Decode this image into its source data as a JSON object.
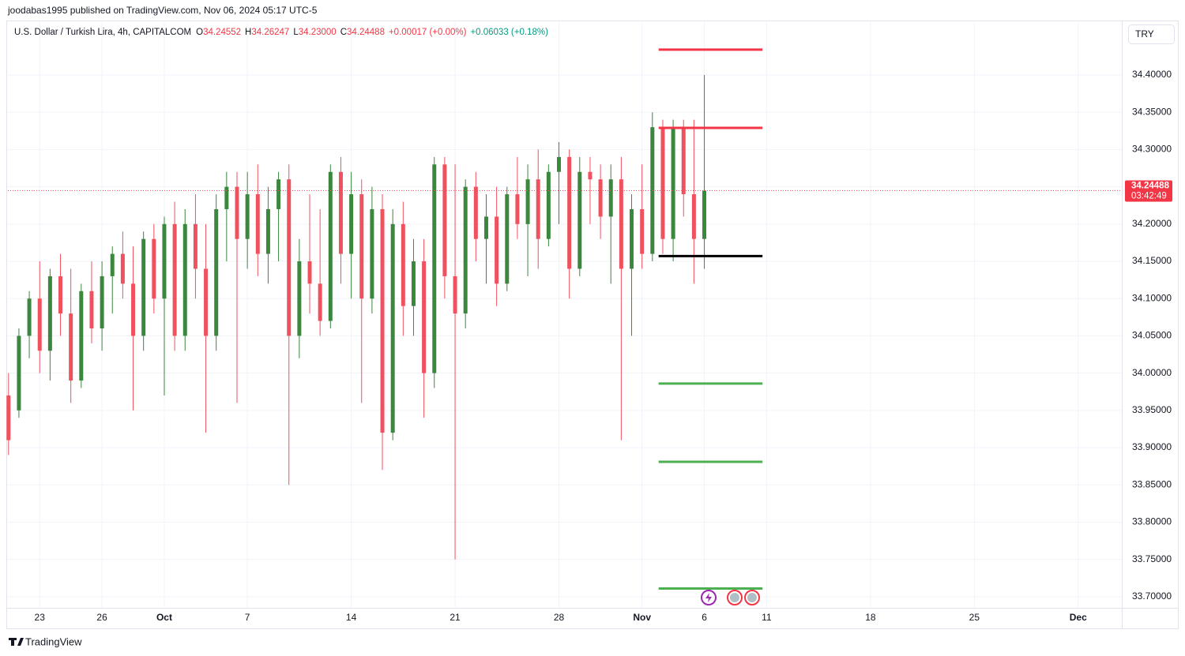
{
  "header": {
    "publisher": "joodabas1995 published on TradingView.com, Nov 06, 2024 05:17 UTC-5",
    "brand": "TradingView",
    "currency": "TRY"
  },
  "chart_data": {
    "type": "candlestick",
    "title": "U.S. Dollar / Turkish Lira, 4h, CAPITALCOM",
    "ohlc_legend": [
      {
        "label": "O",
        "value": "34.24552"
      },
      {
        "label": "H",
        "value": "34.26247"
      },
      {
        "label": "L",
        "value": "34.23000"
      },
      {
        "label": "C",
        "value": "34.24488"
      }
    ],
    "change": "+0.00017 (+0.00%)",
    "change_day": "+0.06033 (+0.18%)",
    "last_price": 34.24488,
    "countdown": "03:42:49",
    "up_color": "#3b873e",
    "down_color": "#f0515e",
    "x": [
      -1.5,
      -1,
      -0.5,
      0,
      0.5,
      1,
      1.5,
      2,
      2.5,
      3,
      3.5,
      4,
      4.5,
      5,
      5.5,
      6,
      6.5,
      7,
      7.5,
      8,
      8.5,
      9,
      9.5,
      10,
      10.5,
      11,
      11.5,
      12,
      12.5,
      13,
      13.5,
      14,
      14.5,
      15,
      15.5,
      16,
      16.5,
      17,
      17.5,
      18,
      18.5,
      19,
      19.5,
      20,
      20.5,
      21,
      21.5,
      22,
      22.5,
      23,
      23.5,
      24,
      24.5,
      25,
      25.5,
      26,
      26.5,
      27,
      27.5,
      28,
      28.5,
      29,
      29.5,
      30,
      30.5,
      31,
      31.5,
      32
    ],
    "open": [
      33.97,
      33.95,
      34.05,
      34.1,
      34.03,
      34.13,
      34.08,
      33.99,
      34.11,
      34.06,
      34.13,
      34.16,
      34.12,
      34.05,
      34.18,
      34.1,
      34.2,
      34.05,
      34.2,
      34.14,
      34.05,
      34.22,
      34.25,
      34.18,
      34.24,
      34.16,
      34.22,
      34.26,
      34.05,
      34.15,
      34.12,
      34.07,
      34.27,
      34.16,
      34.24,
      34.1,
      34.22,
      33.92,
      34.2,
      34.09,
      34.15,
      34.0,
      34.28,
      34.13,
      34.08,
      34.25,
      34.18,
      34.21,
      34.12,
      34.24,
      34.2,
      34.26,
      34.18,
      34.27,
      34.29,
      34.14,
      34.27,
      34.26,
      34.21,
      34.26,
      34.14,
      34.22,
      34.16,
      34.33,
      34.18,
      34.33,
      34.24,
      34.18
    ],
    "high": [
      34.0,
      34.06,
      34.11,
      34.15,
      34.14,
      34.16,
      34.14,
      34.12,
      34.15,
      34.15,
      34.17,
      34.19,
      34.17,
      34.19,
      34.2,
      34.21,
      34.23,
      34.22,
      34.24,
      34.2,
      34.24,
      34.27,
      34.27,
      34.27,
      34.28,
      34.25,
      34.27,
      34.28,
      34.18,
      34.24,
      34.22,
      34.28,
      34.29,
      34.27,
      34.26,
      34.25,
      34.24,
      34.22,
      34.23,
      34.18,
      34.18,
      34.29,
      34.29,
      34.28,
      34.26,
      34.27,
      34.24,
      34.25,
      34.25,
      34.29,
      34.28,
      34.3,
      34.28,
      34.31,
      34.3,
      34.29,
      34.29,
      34.28,
      34.28,
      34.29,
      34.24,
      34.28,
      34.35,
      34.34,
      34.34,
      34.34,
      34.34,
      34.4
    ],
    "low": [
      33.89,
      33.94,
      34.02,
      34.0,
      33.99,
      34.05,
      33.96,
      33.98,
      34.04,
      34.03,
      34.08,
      34.1,
      33.95,
      34.03,
      34.08,
      33.97,
      34.03,
      34.03,
      34.1,
      33.92,
      34.03,
      34.15,
      33.96,
      34.14,
      34.13,
      34.12,
      34.15,
      33.85,
      34.02,
      34.08,
      34.05,
      34.06,
      34.12,
      34.1,
      33.96,
      34.08,
      33.87,
      33.91,
      34.05,
      34.05,
      33.94,
      33.98,
      34.1,
      33.75,
      34.06,
      34.15,
      34.12,
      34.09,
      34.11,
      34.18,
      34.13,
      34.14,
      34.17,
      34.2,
      34.1,
      34.13,
      34.2,
      34.18,
      34.12,
      33.91,
      34.05,
      34.14,
      34.15,
      34.16,
      34.15,
      34.21,
      34.12,
      34.14
    ],
    "close": [
      33.91,
      34.05,
      34.1,
      34.03,
      34.13,
      34.08,
      33.99,
      34.11,
      34.06,
      34.13,
      34.16,
      34.12,
      34.05,
      34.18,
      34.1,
      34.2,
      34.05,
      34.2,
      34.14,
      34.05,
      34.22,
      34.25,
      34.18,
      34.24,
      34.16,
      34.22,
      34.26,
      34.05,
      34.15,
      34.12,
      34.07,
      34.27,
      34.16,
      34.24,
      34.1,
      34.22,
      33.92,
      34.2,
      34.09,
      34.15,
      34.0,
      34.28,
      34.13,
      34.08,
      34.25,
      34.18,
      34.21,
      34.12,
      34.24,
      34.2,
      34.26,
      34.18,
      34.27,
      34.29,
      34.14,
      34.27,
      34.26,
      34.21,
      34.26,
      34.14,
      34.22,
      34.16,
      34.33,
      34.18,
      34.33,
      34.24,
      34.18,
      34.24488
    ],
    "levels": [
      {
        "value": 34.434,
        "color": "#f23645",
        "x_start": 29.8,
        "x_end": 34.8
      },
      {
        "value": 34.329,
        "color": "#f23645",
        "x_start": 29.8,
        "x_end": 34.8
      },
      {
        "value": 34.157,
        "color": "#000000",
        "x_start": 29.8,
        "x_end": 34.8
      },
      {
        "value": 33.986,
        "color": "#4caf50",
        "x_start": 29.8,
        "x_end": 34.8
      },
      {
        "value": 33.881,
        "color": "#4caf50",
        "x_start": 29.8,
        "x_end": 34.8
      },
      {
        "value": 33.711,
        "color": "#4caf50",
        "x_start": 29.8,
        "x_end": 34.8
      }
    ],
    "xlim": [
      -1.53,
      52.1
    ],
    "ylim": [
      33.685,
      34.471
    ],
    "xticks": [
      {
        "value": 0,
        "label": "23"
      },
      {
        "value": 3,
        "label": "26"
      },
      {
        "value": 6,
        "label": "Oct"
      },
      {
        "value": 10,
        "label": "7"
      },
      {
        "value": 15,
        "label": "14"
      },
      {
        "value": 20,
        "label": "21"
      },
      {
        "value": 25,
        "label": "28"
      },
      {
        "value": 29,
        "label": "Nov"
      },
      {
        "value": 32,
        "label": "6"
      },
      {
        "value": 35,
        "label": "11"
      },
      {
        "value": 40,
        "label": "18"
      },
      {
        "value": 45,
        "label": "25"
      },
      {
        "value": 50,
        "label": "Dec"
      }
    ],
    "yticks": [
      {
        "value": 33.7,
        "label": "33.70000"
      },
      {
        "value": 33.75,
        "label": "33.75000"
      },
      {
        "value": 33.8,
        "label": "33.80000"
      },
      {
        "value": 33.85,
        "label": "33.85000"
      },
      {
        "value": 33.9,
        "label": "33.90000"
      },
      {
        "value": 33.95,
        "label": "33.95000"
      },
      {
        "value": 34.0,
        "label": "34.00000"
      },
      {
        "value": 34.05,
        "label": "34.05000"
      },
      {
        "value": 34.1,
        "label": "34.10000"
      },
      {
        "value": 34.15,
        "label": "34.15000"
      },
      {
        "value": 34.2,
        "label": "34.20000"
      },
      {
        "value": 34.25,
        "label": "34.25000"
      },
      {
        "value": 34.3,
        "label": "34.30000"
      },
      {
        "value": 34.35,
        "label": "34.35000"
      },
      {
        "value": 34.4,
        "label": "34.40000"
      }
    ],
    "grid": true
  }
}
